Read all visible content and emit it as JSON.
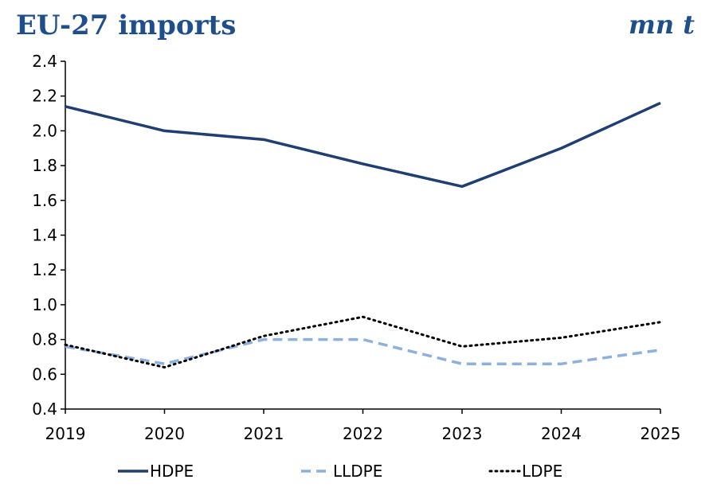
{
  "header": {
    "title": "EU-27 imports",
    "unit": "mn t"
  },
  "chart_data": {
    "type": "line",
    "title": "EU-27 imports",
    "unit_label": "mn t",
    "x": [
      "2019",
      "2020",
      "2021",
      "2022",
      "2023",
      "2024",
      "2025"
    ],
    "xlabel": "",
    "ylabel": "",
    "ylim": [
      0.4,
      2.4
    ],
    "yticks": [
      "0.4",
      "0.6",
      "0.8",
      "1.0",
      "1.2",
      "1.4",
      "1.6",
      "1.8",
      "2.0",
      "2.2",
      "2.4"
    ],
    "grid": false,
    "legend_position": "bottom",
    "series": [
      {
        "name": "HDPE",
        "values": [
          2.14,
          2.0,
          1.95,
          1.81,
          1.68,
          1.9,
          2.16
        ],
        "color": "#1f3f73",
        "style": "solid"
      },
      {
        "name": "LLDPE",
        "values": [
          0.76,
          0.66,
          0.8,
          0.8,
          0.66,
          0.66,
          0.74
        ],
        "color": "#8cb0e0",
        "style": "dashed"
      },
      {
        "name": "LDPE",
        "values": [
          0.77,
          0.64,
          0.82,
          0.93,
          0.76,
          0.81,
          0.9
        ],
        "color": "#000000",
        "style": "dotted"
      }
    ]
  }
}
